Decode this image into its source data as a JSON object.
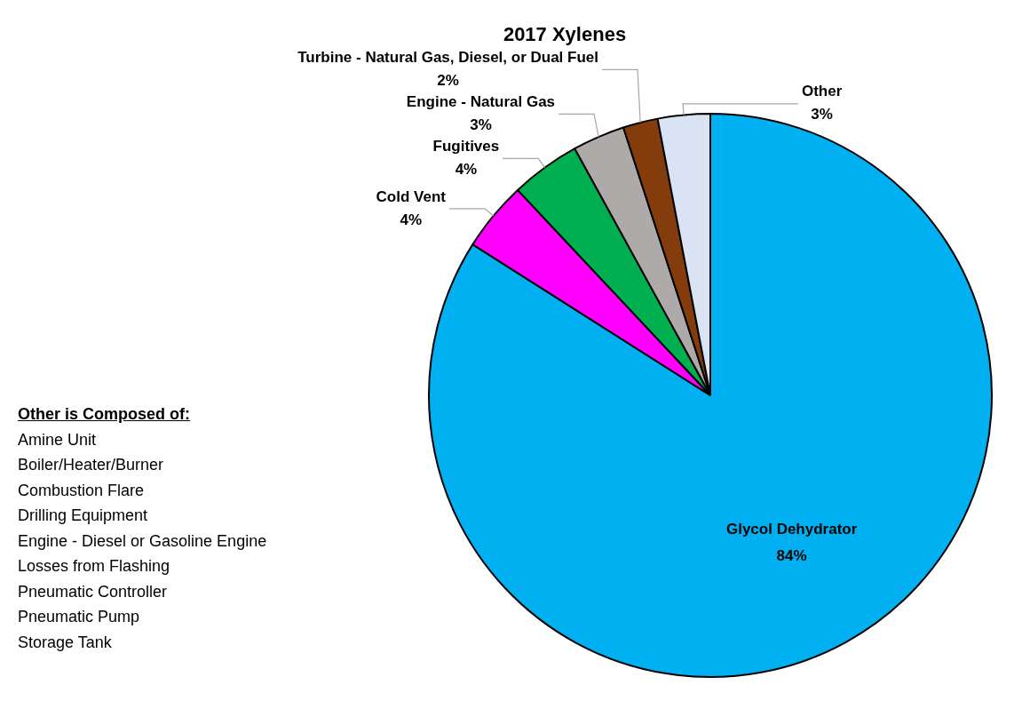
{
  "chart_data": {
    "type": "pie",
    "title": "2017 Xylenes",
    "categories": [
      "Glycol Dehydrator",
      "Cold Vent",
      "Fugitives",
      "Engine - Natural Gas",
      "Turbine - Natural Gas, Diesel, or Dual Fuel",
      "Other"
    ],
    "values": [
      84,
      4,
      4,
      3,
      2,
      3
    ],
    "value_labels": [
      "84%",
      "4%",
      "4%",
      "3%",
      "2%",
      "3%"
    ],
    "colors": [
      "#00b0f0",
      "#ff00ff",
      "#00b050",
      "#aeaaaa",
      "#843c0c",
      "#dae3f3"
    ],
    "annotations": [
      "Other is Composed of:",
      "Amine Unit",
      "Boiler/Heater/Burner",
      "Combustion Flare",
      "Drilling Equipment",
      "Engine - Diesel or Gasoline Engine",
      "Losses from Flashing",
      "Pneumatic Controller",
      "Pneumatic Pump",
      "Storage Tank"
    ]
  }
}
